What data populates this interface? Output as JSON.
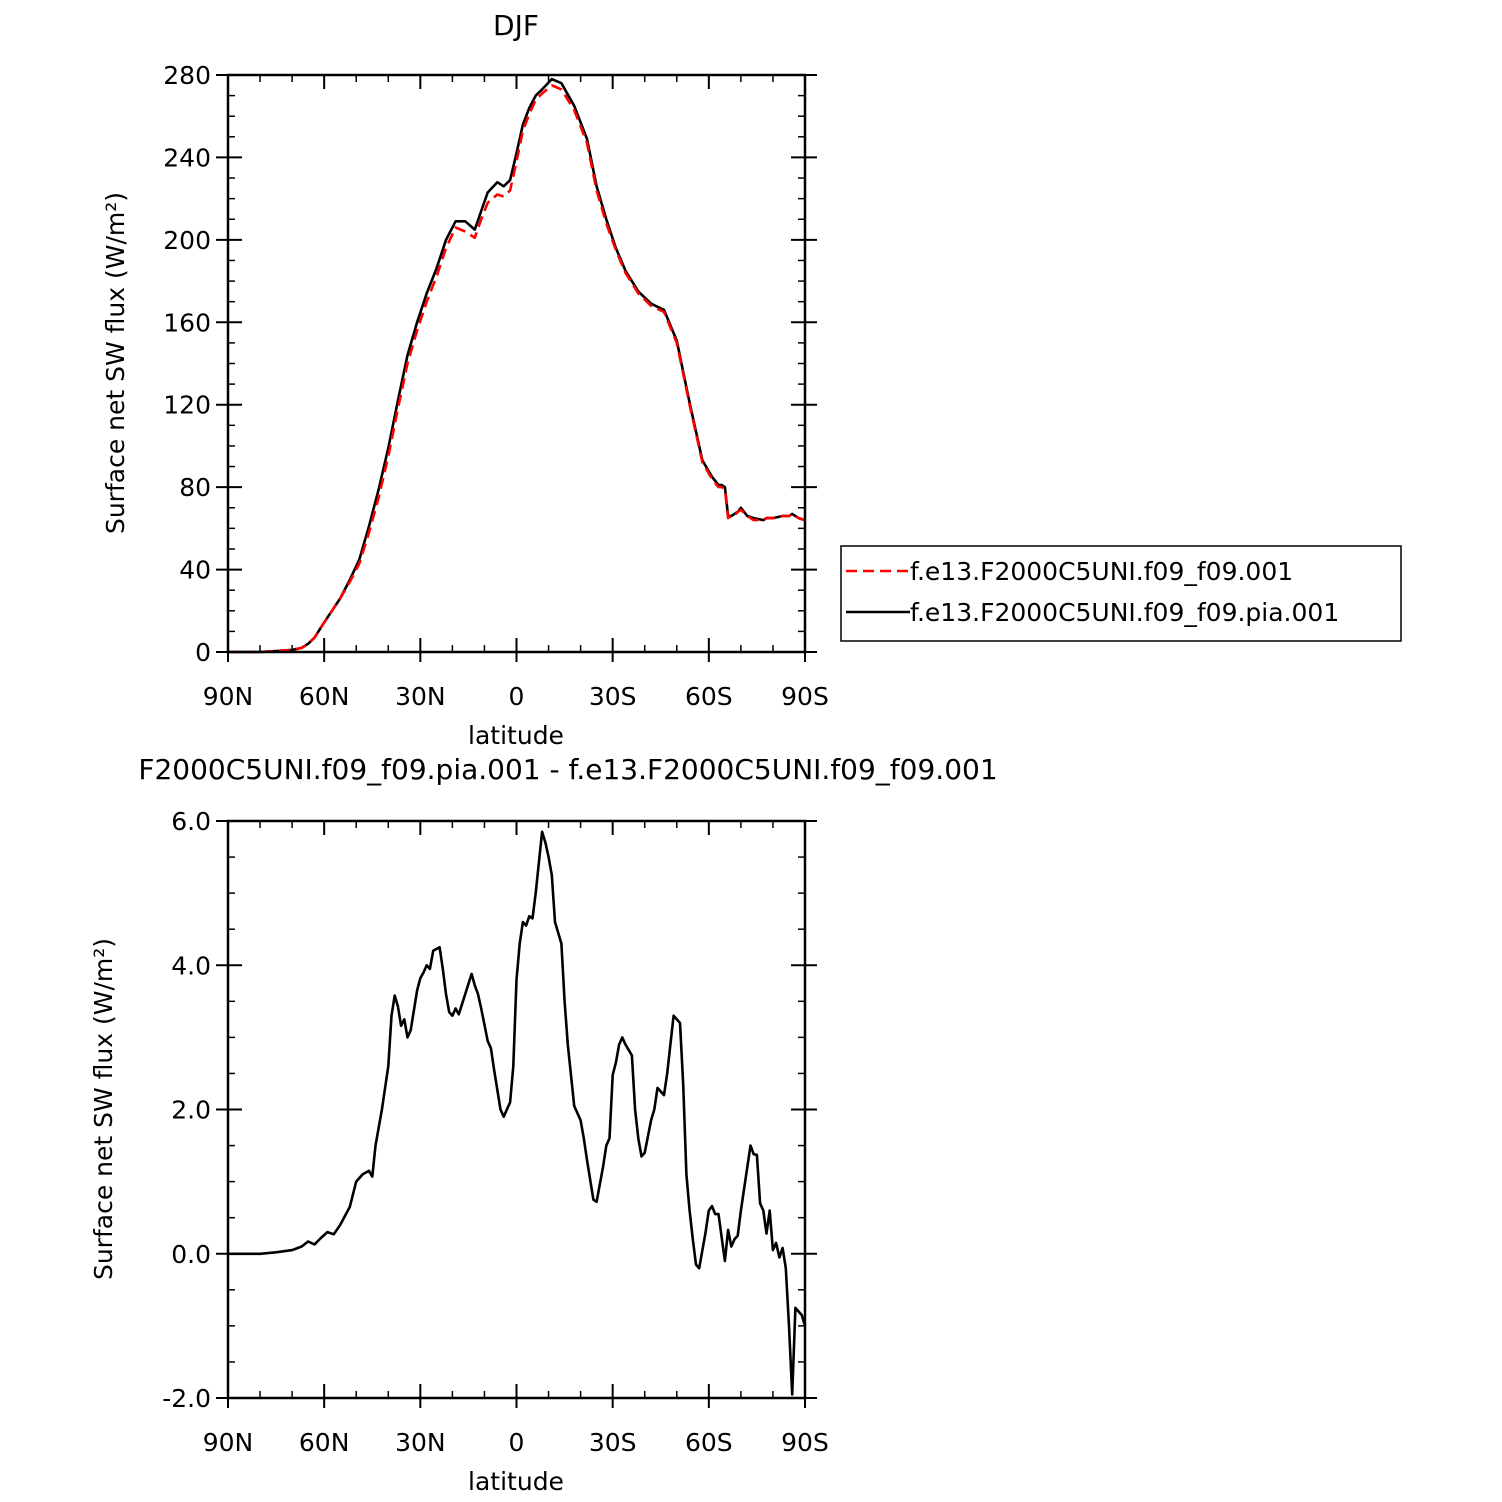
{
  "chart_data": [
    {
      "type": "line",
      "title": "DJF",
      "xlabel": "latitude",
      "ylabel": "Surface net SW flux (W/m²)",
      "xlim": [
        90,
        -90
      ],
      "ylim": [
        0,
        280
      ],
      "xticks": [
        90,
        60,
        30,
        0,
        -30,
        -60,
        -90
      ],
      "xtick_labels": [
        "90N",
        "60N",
        "30N",
        "0",
        "30S",
        "60S",
        "90S"
      ],
      "yticks": [
        0,
        40,
        80,
        120,
        160,
        200,
        240,
        280
      ],
      "ytick_labels": [
        "0",
        "40",
        "80",
        "120",
        "160",
        "200",
        "240",
        "280"
      ],
      "legend_position": "right",
      "series": [
        {
          "name": "f.e13.F2000C5UNI.f09_f09.001",
          "color": "#ff0000",
          "dash": "dashed",
          "x": [
            90,
            80,
            75,
            70,
            67,
            65,
            63,
            61,
            58,
            55,
            52,
            49,
            46,
            43,
            40,
            37,
            34,
            31,
            28,
            25,
            22,
            19,
            16,
            13,
            11,
            9,
            6,
            4,
            2,
            0,
            -2,
            -4,
            -6,
            -8,
            -11,
            -14,
            -18,
            -22,
            -25,
            -28,
            -31,
            -34,
            -38,
            -42,
            -46,
            -50,
            -54,
            -58,
            -61,
            -63,
            -64,
            -65,
            -66,
            -67,
            -68,
            -69,
            -70,
            -72,
            -74,
            -77,
            -78,
            -80,
            -83,
            -85,
            -86,
            -88,
            -90
          ],
          "values": [
            0,
            0,
            0.5,
            1,
            2,
            4,
            7,
            12,
            19,
            26,
            34,
            43,
            58,
            75,
            95,
            118,
            140,
            156,
            170,
            182,
            196,
            206,
            204,
            201,
            210,
            218,
            222,
            221,
            224,
            238,
            253,
            261,
            268,
            271,
            275,
            273,
            263,
            247,
            224,
            208,
            195,
            184,
            174,
            168,
            165,
            150,
            120,
            92,
            84,
            80,
            80,
            79,
            65,
            66,
            66,
            68,
            69,
            66,
            64,
            64,
            65,
            65,
            66,
            66,
            67,
            65,
            64
          ]
        },
        {
          "name": "f.e13.F2000C5UNI.f09_f09.pia.001",
          "color": "#000000",
          "dash": "solid",
          "x": [
            90,
            80,
            75,
            70,
            67,
            65,
            63,
            61,
            58,
            55,
            52,
            49,
            46,
            43,
            40,
            37,
            34,
            31,
            28,
            25,
            22,
            19,
            16,
            13,
            11,
            9,
            6,
            4,
            2,
            0,
            -2,
            -4,
            -6,
            -8,
            -11,
            -14,
            -18,
            -22,
            -25,
            -28,
            -31,
            -34,
            -38,
            -42,
            -46,
            -50,
            -54,
            -58,
            -61,
            -63,
            -64,
            -65,
            -66,
            -67,
            -68,
            -69,
            -70,
            -72,
            -74,
            -77,
            -78,
            -80,
            -83,
            -85,
            -86,
            -88,
            -90
          ],
          "values": [
            0,
            0,
            0.5,
            1,
            2,
            4,
            7,
            12,
            19,
            26,
            35,
            45,
            61,
            79,
            99,
            122,
            144,
            160,
            174,
            186,
            200,
            209,
            209,
            205,
            214,
            223,
            228,
            226,
            229,
            242,
            256,
            264,
            270,
            273,
            278,
            276,
            265,
            249,
            226,
            210,
            196,
            185,
            175,
            169,
            166,
            151,
            121,
            93,
            85,
            81,
            81,
            80,
            66,
            66,
            67,
            68,
            70,
            66,
            65,
            64,
            65,
            65,
            66,
            66,
            67,
            65,
            64
          ]
        }
      ]
    },
    {
      "type": "line",
      "title": "F2000C5UNI.f09_f09.pia.001 - f.e13.F2000C5UNI.f09_f09.001",
      "xlabel": "latitude",
      "ylabel": "Surface net SW flux (W/m²)",
      "xlim": [
        90,
        -90
      ],
      "ylim": [
        -2,
        6
      ],
      "xticks": [
        90,
        60,
        30,
        0,
        -30,
        -60,
        -90
      ],
      "xtick_labels": [
        "90N",
        "60N",
        "30N",
        "0",
        "30S",
        "60S",
        "90S"
      ],
      "yticks": [
        -2,
        0,
        2,
        4,
        6
      ],
      "ytick_labels": [
        "-2.0",
        "0.0",
        "2.0",
        "4.0",
        "6.0"
      ],
      "series": [
        {
          "color": "#000000",
          "dash": "solid",
          "x": [
            90,
            80,
            75,
            70,
            67,
            65,
            63,
            61,
            59,
            57,
            55,
            52,
            50,
            48,
            46,
            45,
            44,
            42,
            40,
            39,
            38,
            37,
            36,
            35,
            34,
            33,
            31,
            30,
            29,
            28,
            27,
            26,
            24,
            23,
            22,
            21,
            20,
            19,
            18,
            16,
            14,
            13,
            12,
            11,
            9,
            8,
            7,
            5,
            4,
            3,
            2,
            1,
            0,
            -1,
            -2,
            -3,
            -4,
            -5,
            -6,
            -8,
            -9,
            -10,
            -11,
            -12,
            -14,
            -15,
            -16,
            -18,
            -20,
            -21,
            -22,
            -24,
            -25,
            -27,
            -28,
            -29,
            -30,
            -31,
            -32,
            -33,
            -34,
            -36,
            -37,
            -38,
            -39,
            -40,
            -42,
            -43,
            -44,
            -46,
            -47,
            -49,
            -51,
            -52,
            -53,
            -54,
            -55,
            -56,
            -57,
            -59,
            -60,
            -61,
            -62,
            -63,
            -65,
            -66,
            -67,
            -68,
            -69,
            -70,
            -71,
            -73,
            -74,
            -75,
            -76,
            -77,
            -78,
            -79,
            -80,
            -81,
            -82,
            -83,
            -84,
            -85,
            -86,
            -87,
            -88,
            -89,
            -90
          ],
          "values": [
            0,
            0,
            0.02,
            0.05,
            0.1,
            0.17,
            0.13,
            0.22,
            0.3,
            0.27,
            0.4,
            0.65,
            1.0,
            1.1,
            1.15,
            1.07,
            1.5,
            2.0,
            2.6,
            3.3,
            3.58,
            3.43,
            3.16,
            3.25,
            3.0,
            3.1,
            3.65,
            3.82,
            3.9,
            4.0,
            3.95,
            4.2,
            4.25,
            3.95,
            3.6,
            3.35,
            3.3,
            3.4,
            3.32,
            3.6,
            3.88,
            3.72,
            3.6,
            3.4,
            2.95,
            2.85,
            2.55,
            2.0,
            1.9,
            2.0,
            2.1,
            2.6,
            3.8,
            4.3,
            4.6,
            4.55,
            4.68,
            4.65,
            5.0,
            5.85,
            5.7,
            5.5,
            5.25,
            4.6,
            4.3,
            3.5,
            2.9,
            2.05,
            1.85,
            1.6,
            1.3,
            0.75,
            0.72,
            1.2,
            1.5,
            1.6,
            2.48,
            2.65,
            2.9,
            3.0,
            2.9,
            2.75,
            2.0,
            1.6,
            1.35,
            1.4,
            1.85,
            2.0,
            2.3,
            2.2,
            2.5,
            3.3,
            3.2,
            2.35,
            1.1,
            0.6,
            0.2,
            -0.15,
            -0.2,
            0.3,
            0.6,
            0.66,
            0.55,
            0.55,
            -0.1,
            0.33,
            0.1,
            0.2,
            0.25,
            0.6,
            0.9,
            1.5,
            1.38,
            1.37,
            0.7,
            0.6,
            0.28,
            0.6,
            0.05,
            0.15,
            -0.05,
            0.08,
            -0.2,
            -1.0,
            -1.95,
            -0.75,
            -0.8,
            -0.85,
            -1.0
          ]
        }
      ]
    }
  ]
}
